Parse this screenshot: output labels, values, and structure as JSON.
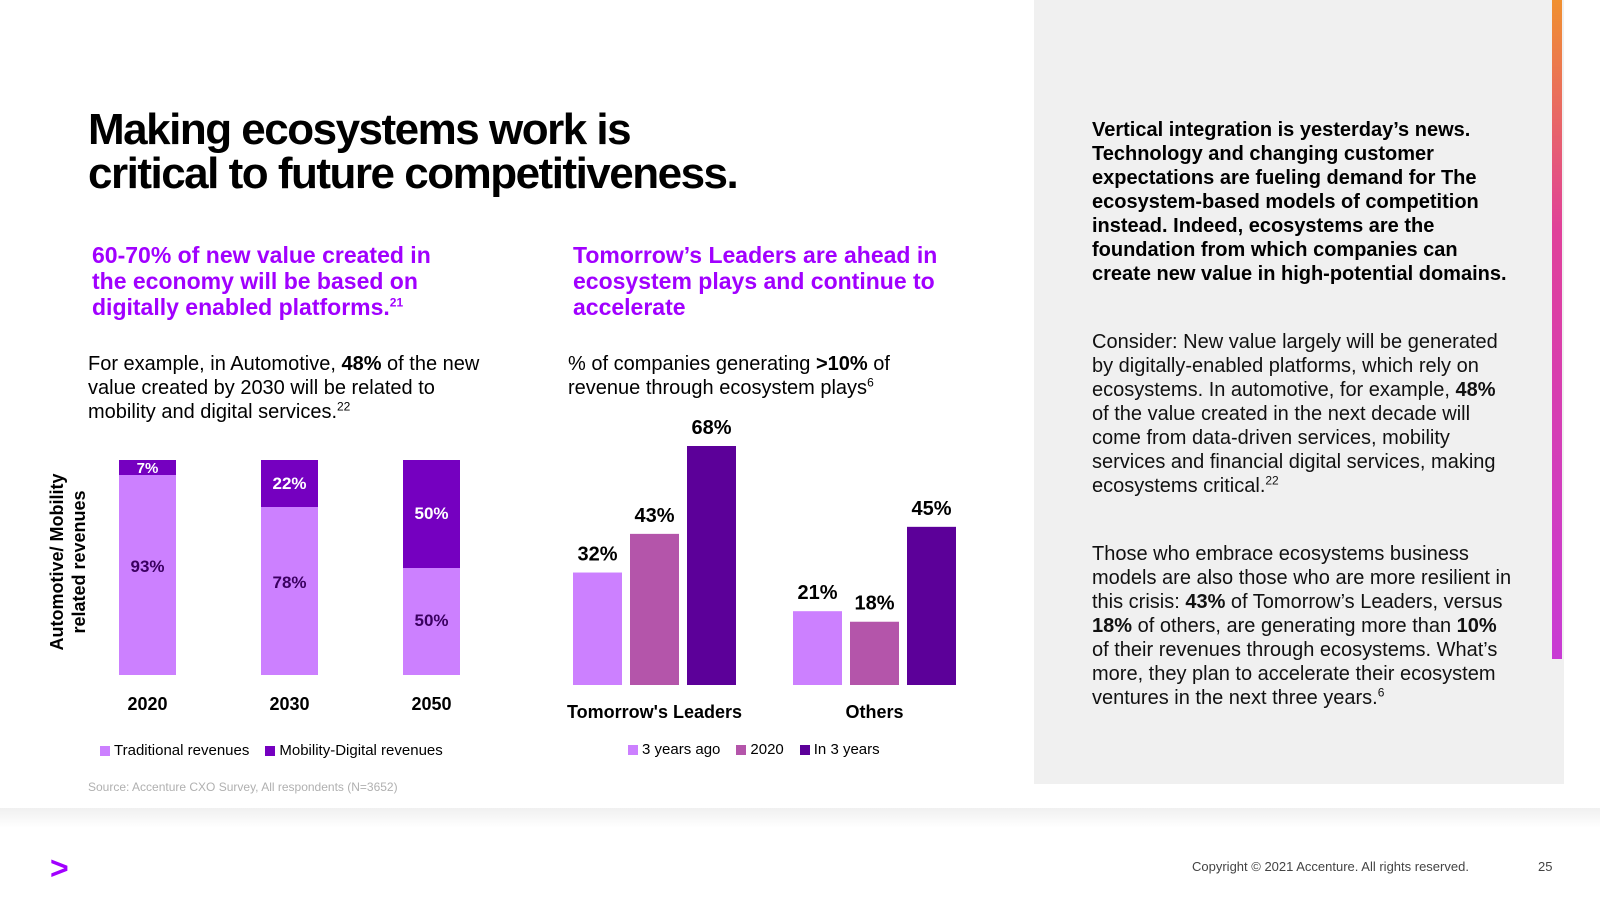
{
  "title": [
    "Making ecosystems work is",
    "critical to future competitiveness."
  ],
  "left_section": {
    "headline": "60-70% of new value created in the economy will be based on digitally enabled platforms.",
    "headline_ref": "21",
    "body_pre": "For example, in Automotive, ",
    "body_bold": "48%",
    "body_post": " of the new value created by 2030 will be related to mobility and digital services.",
    "body_ref": "22"
  },
  "right_section": {
    "headline": "Tomorrow’s Leaders are ahead in ecosystem plays and continue to accelerate",
    "body_pre": "% of companies generating ",
    "body_bold": ">10%",
    "body_post": " of revenue through ecosystem plays",
    "body_ref": "6"
  },
  "colors": {
    "light_purple": "#cc80ff",
    "dark_purple": "#7500c0",
    "mauve": "#b455aa",
    "deep_purple": "#5c0099",
    "accenture_purple": "#a100ff"
  },
  "chart_data": [
    {
      "type": "bar",
      "stacked": true,
      "normalized": true,
      "ylabel": "Automotive/ Mobility related revenues",
      "categories": [
        "2020",
        "2030",
        "2050"
      ],
      "series": [
        {
          "name": "Traditional revenues",
          "values": [
            93,
            78,
            50
          ],
          "labels": [
            "93%",
            "78%",
            "50%"
          ]
        },
        {
          "name": "Mobility-Digital revenues",
          "values": [
            7,
            22,
            50
          ],
          "labels": [
            "7%",
            "22%",
            "50%"
          ]
        }
      ],
      "legend": "bottom"
    },
    {
      "type": "bar",
      "title": "% of companies generating >10% of revenue through ecosystem plays",
      "categories": [
        "Tomorrow's Leaders",
        "Others"
      ],
      "series": [
        {
          "name": "3 years ago",
          "values": [
            32,
            21
          ],
          "labels": [
            "32%",
            "21%"
          ]
        },
        {
          "name": "2020",
          "values": [
            43,
            18
          ],
          "labels": [
            "43%",
            "18%"
          ]
        },
        {
          "name": "In 3 years",
          "values": [
            68,
            45
          ],
          "labels": [
            "68%",
            "45%"
          ]
        }
      ],
      "ylim": [
        0,
        68
      ],
      "legend": "bottom"
    }
  ],
  "source": "Source: Accenture CXO Survey, All respondents (N=3652)",
  "sidebar": {
    "bold_paragraph": "Vertical integration is yesterday’s news. Technology and changing customer expectations are fueling demand for The ecosystem-based models of competition instead. Indeed, ecosystems are the foundation from which companies can create new value in high-potential domains.",
    "p2_pre": "Consider: New value largely will be generated by digitally-enabled platforms, which rely on ecosystems.  In automotive, for example, ",
    "p2_bold": "48%",
    "p2_post": " of the value created in the next decade will come from data-driven services, mobility services and financial digital services, making ecosystems critical.",
    "p2_ref": "22",
    "p3_a": "Those who embrace ecosystems business models are also those who are more resilient in this crisis: ",
    "p3_b": "43%",
    "p3_c": " of Tomorrow’s Leaders, versus ",
    "p3_d": "18%",
    "p3_e": " of others, are generating more than ",
    "p3_f": "10%",
    "p3_g": " of  their revenues through ecosystems. What’s more, they plan to accelerate their ecosystem ventures in the next three years.",
    "p3_ref": "6"
  },
  "footer": {
    "logo": ">",
    "copyright": "Copyright © 2021 Accenture. All rights reserved.",
    "page_number": "25"
  }
}
